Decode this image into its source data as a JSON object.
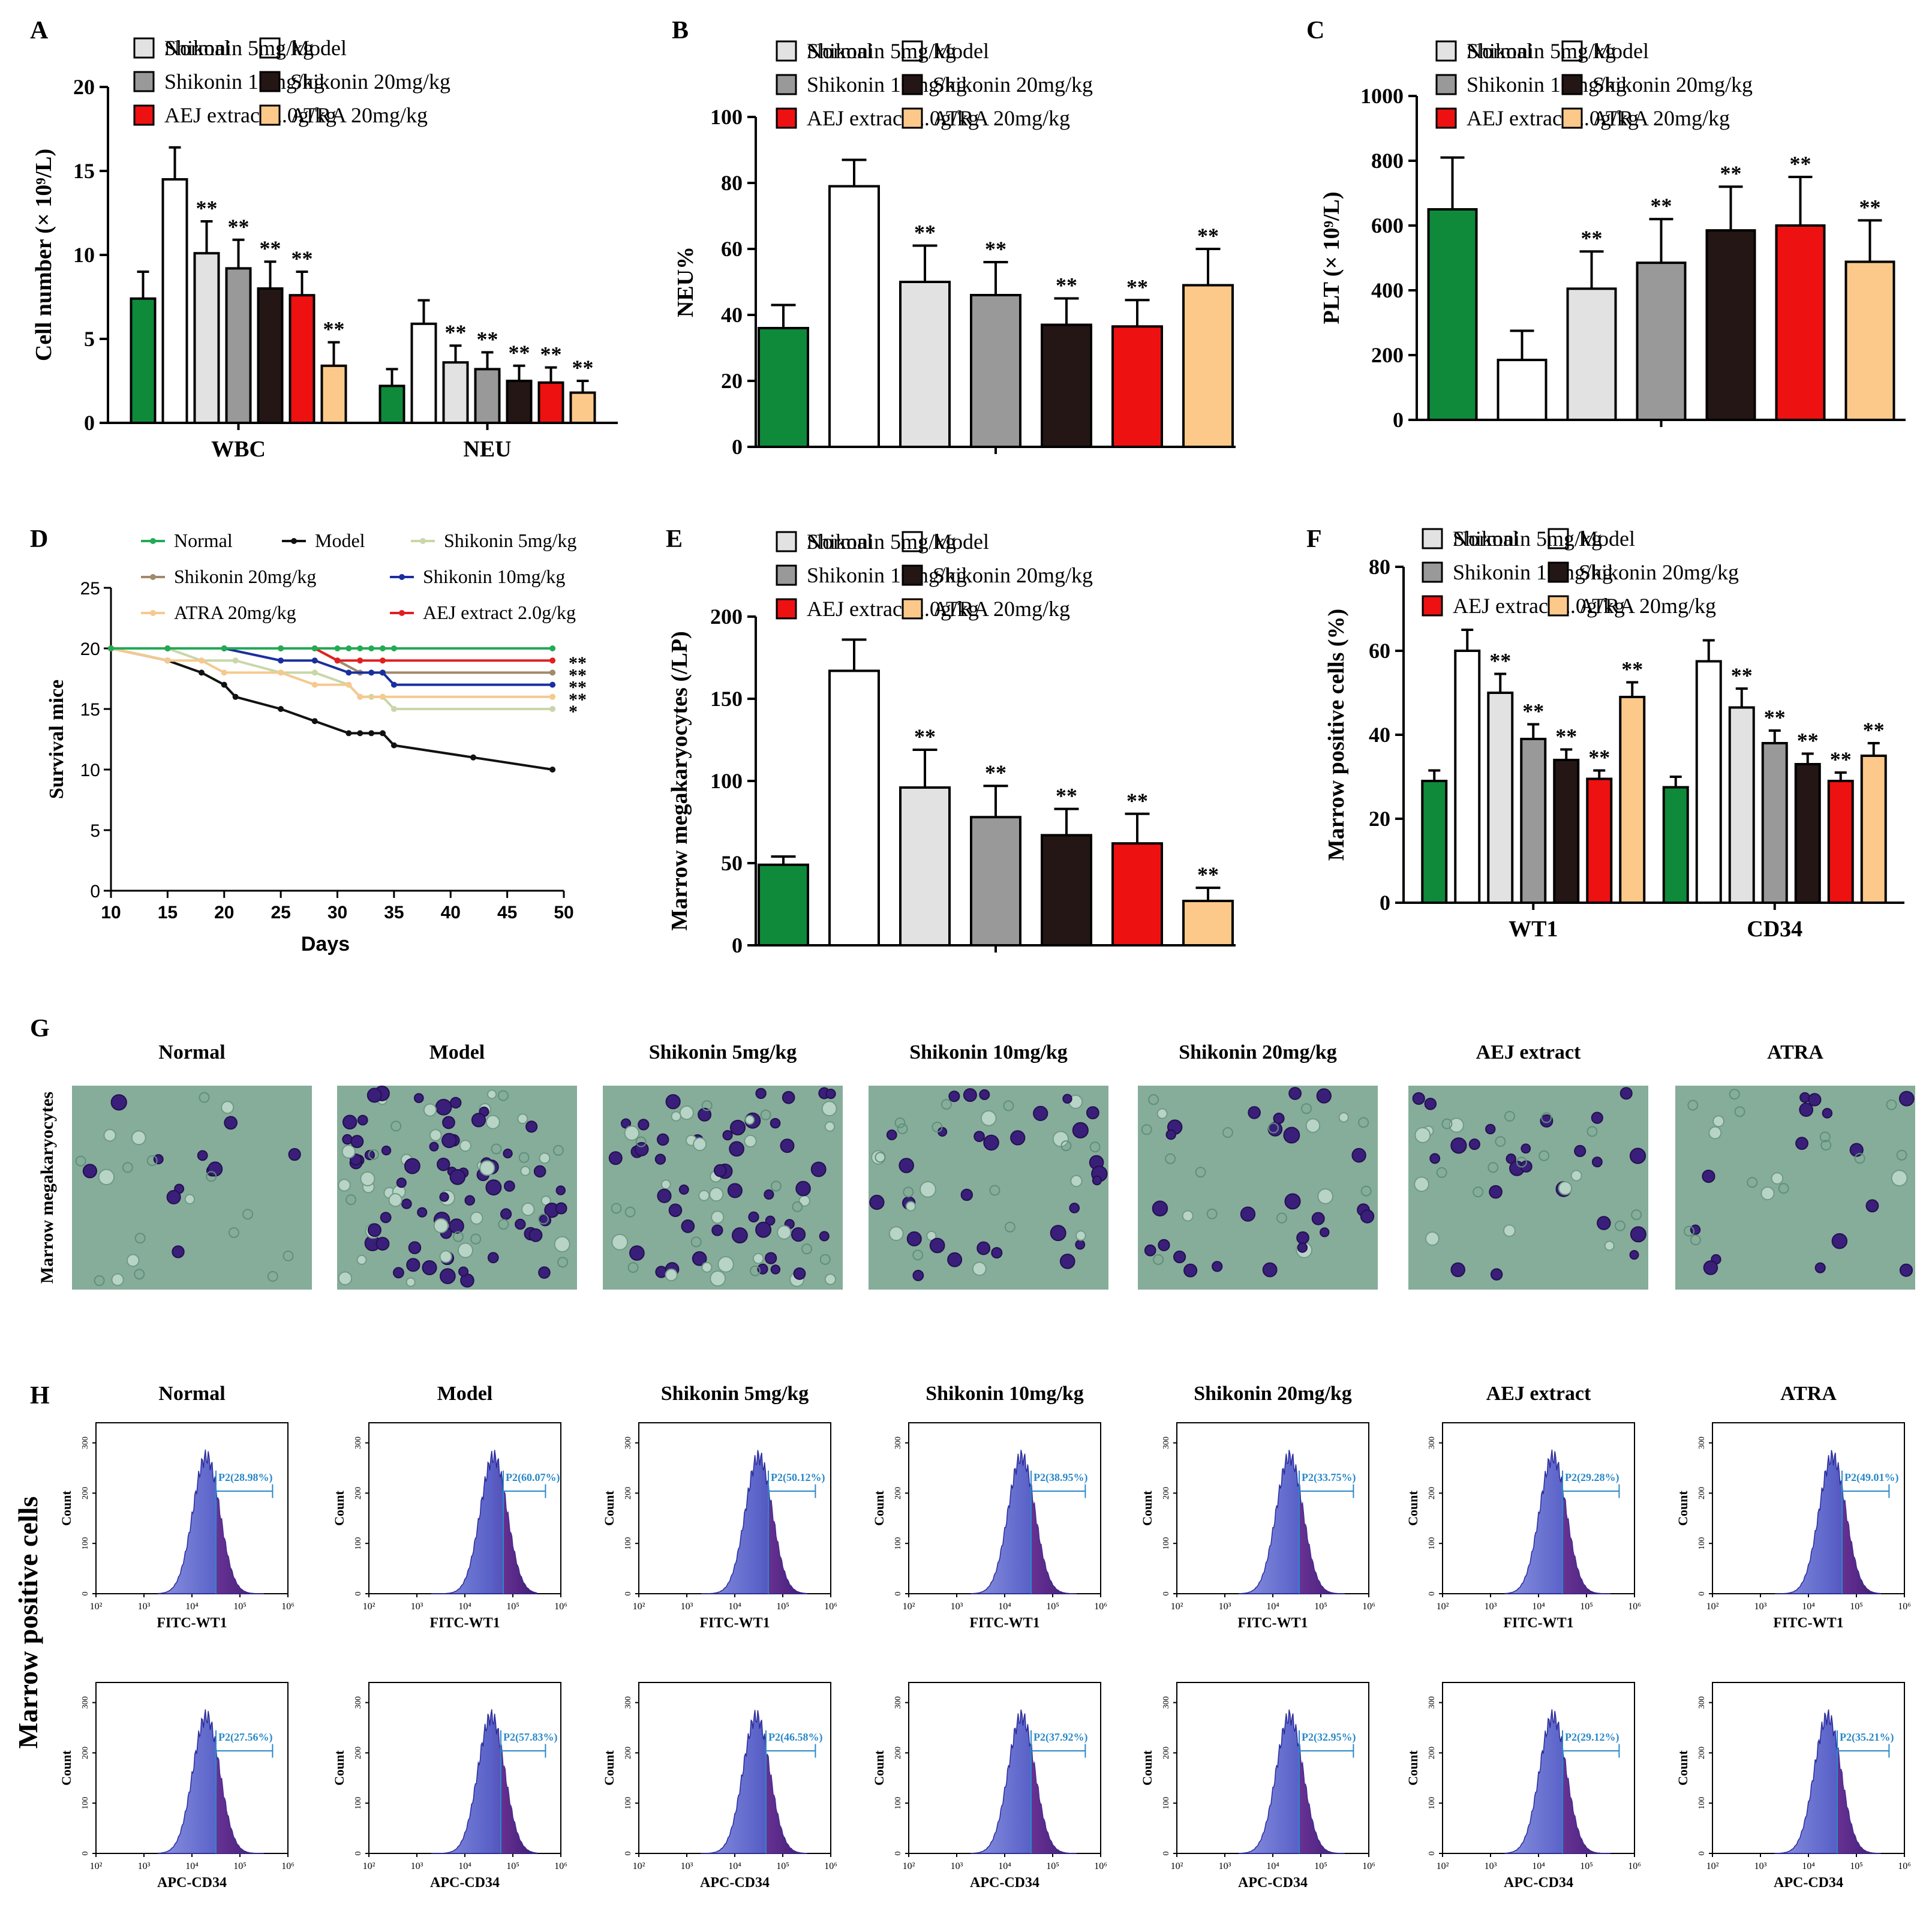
{
  "groups": [
    {
      "name": "Normal",
      "color": "#0e8a3a"
    },
    {
      "name": "Model",
      "color": "#ffffff"
    },
    {
      "name": "Shikonin 5mg/kg",
      "color": "#e2e2e2"
    },
    {
      "name": "Shikonin 10mg/kg",
      "color": "#999999"
    },
    {
      "name": "Shikonin 20mg/kg",
      "color": "#231614"
    },
    {
      "name": "AEJ extract 2.0g/kg",
      "color": "#ee1111"
    },
    {
      "name": "ATRA 20mg/kg",
      "color": "#fcc98a"
    }
  ],
  "chart_data": [
    {
      "panel": "A",
      "type": "bar",
      "ylabel": "Cell number (× 10⁹/L)",
      "ylim": [
        0,
        20
      ],
      "ytick_step": 5,
      "categories": [
        "WBC",
        "NEU"
      ],
      "series": [
        {
          "name": "Normal",
          "values": [
            7.4,
            2.2
          ],
          "errors": [
            1.6,
            1.0
          ],
          "sig": [
            "",
            ""
          ]
        },
        {
          "name": "Model",
          "values": [
            14.5,
            5.9
          ],
          "errors": [
            1.9,
            1.4
          ],
          "sig": [
            "",
            ""
          ]
        },
        {
          "name": "Shikonin 5mg/kg",
          "values": [
            10.1,
            3.6
          ],
          "errors": [
            1.9,
            1.0
          ],
          "sig": [
            "**",
            "**"
          ]
        },
        {
          "name": "Shikonin 10mg/kg",
          "values": [
            9.2,
            3.2
          ],
          "errors": [
            1.7,
            1.0
          ],
          "sig": [
            "**",
            "**"
          ]
        },
        {
          "name": "Shikonin 20mg/kg",
          "values": [
            8.0,
            2.5
          ],
          "errors": [
            1.6,
            0.9
          ],
          "sig": [
            "**",
            "**"
          ]
        },
        {
          "name": "AEJ extract 2.0g/kg",
          "values": [
            7.6,
            2.4
          ],
          "errors": [
            1.4,
            0.9
          ],
          "sig": [
            "**",
            "**"
          ]
        },
        {
          "name": "ATRA 20mg/kg",
          "values": [
            3.4,
            1.8
          ],
          "errors": [
            1.4,
            0.7
          ],
          "sig": [
            "**",
            "**"
          ]
        }
      ]
    },
    {
      "panel": "B",
      "type": "bar",
      "ylabel": "NEU%",
      "ylim": [
        0,
        100
      ],
      "ytick_step": 20,
      "categories": [
        ""
      ],
      "series": [
        {
          "name": "Normal",
          "values": [
            36
          ],
          "errors": [
            7
          ],
          "sig": [
            ""
          ]
        },
        {
          "name": "Model",
          "values": [
            79
          ],
          "errors": [
            8
          ],
          "sig": [
            ""
          ]
        },
        {
          "name": "Shikonin 5mg/kg",
          "values": [
            50
          ],
          "errors": [
            11
          ],
          "sig": [
            "**"
          ]
        },
        {
          "name": "Shikonin 10mg/kg",
          "values": [
            46
          ],
          "errors": [
            10
          ],
          "sig": [
            "**"
          ]
        },
        {
          "name": "Shikonin 20mg/kg",
          "values": [
            37
          ],
          "errors": [
            8
          ],
          "sig": [
            "**"
          ]
        },
        {
          "name": "AEJ extract 2.0g/kg",
          "values": [
            36.5
          ],
          "errors": [
            8
          ],
          "sig": [
            "**"
          ]
        },
        {
          "name": "ATRA 20mg/kg",
          "values": [
            49
          ],
          "errors": [
            11
          ],
          "sig": [
            "**"
          ]
        }
      ]
    },
    {
      "panel": "C",
      "type": "bar",
      "ylabel": "PLT (× 10⁹/L)",
      "ylim": [
        0,
        1000
      ],
      "ytick_step": 200,
      "categories": [
        ""
      ],
      "series": [
        {
          "name": "Normal",
          "values": [
            650
          ],
          "errors": [
            160
          ],
          "sig": [
            ""
          ]
        },
        {
          "name": "Model",
          "values": [
            185
          ],
          "errors": [
            90
          ],
          "sig": [
            ""
          ]
        },
        {
          "name": "Shikonin 5mg/kg",
          "values": [
            405
          ],
          "errors": [
            115
          ],
          "sig": [
            "**"
          ]
        },
        {
          "name": "Shikonin 10mg/kg",
          "values": [
            485
          ],
          "errors": [
            135
          ],
          "sig": [
            "**"
          ]
        },
        {
          "name": "Shikonin 20mg/kg",
          "values": [
            585
          ],
          "errors": [
            135
          ],
          "sig": [
            "**"
          ]
        },
        {
          "name": "AEJ extract 2.0g/kg",
          "values": [
            600
          ],
          "errors": [
            150
          ],
          "sig": [
            "**"
          ]
        },
        {
          "name": "ATRA 20mg/kg",
          "values": [
            488
          ],
          "errors": [
            128
          ],
          "sig": [
            "**"
          ]
        }
      ]
    },
    {
      "panel": "D",
      "type": "line",
      "xlabel": "Days",
      "ylabel": "Survival mice",
      "xlim": [
        10,
        50
      ],
      "ylim": [
        0,
        25
      ],
      "xtick_step": 5,
      "ytick_step": 5,
      "series": [
        {
          "name": "Normal",
          "color": "#22aa55",
          "points": [
            [
              10,
              20
            ],
            [
              15,
              20
            ],
            [
              20,
              20
            ],
            [
              25,
              20
            ],
            [
              28,
              20
            ],
            [
              30,
              20
            ],
            [
              31,
              20
            ],
            [
              32,
              20
            ],
            [
              33,
              20
            ],
            [
              34,
              20
            ],
            [
              35,
              20
            ],
            [
              49,
              20
            ]
          ],
          "sig": ""
        },
        {
          "name": "Model",
          "color": "#111111",
          "points": [
            [
              10,
              20
            ],
            [
              15,
              19
            ],
            [
              18,
              18
            ],
            [
              20,
              17
            ],
            [
              21,
              16
            ],
            [
              25,
              15
            ],
            [
              28,
              14
            ],
            [
              31,
              13
            ],
            [
              32,
              13
            ],
            [
              33,
              13
            ],
            [
              34,
              13
            ],
            [
              35,
              12
            ],
            [
              42,
              11
            ],
            [
              49,
              10
            ]
          ],
          "sig": ""
        },
        {
          "name": "Shikonin 5mg/kg",
          "color": "#c9d6a8",
          "points": [
            [
              10,
              20
            ],
            [
              15,
              20
            ],
            [
              18,
              19
            ],
            [
              21,
              19
            ],
            [
              25,
              18
            ],
            [
              28,
              18
            ],
            [
              31,
              17
            ],
            [
              32,
              16
            ],
            [
              33,
              16
            ],
            [
              34,
              16
            ],
            [
              35,
              15
            ],
            [
              49,
              15
            ]
          ],
          "sig": "*"
        },
        {
          "name": "Shikonin 20mg/kg",
          "color": "#a08a6a",
          "points": [
            [
              10,
              20
            ],
            [
              15,
              20
            ],
            [
              20,
              20
            ],
            [
              28,
              20
            ],
            [
              30,
              19
            ],
            [
              32,
              18
            ],
            [
              34,
              18
            ],
            [
              49,
              18
            ]
          ],
          "sig": "**"
        },
        {
          "name": "Shikonin 10mg/kg",
          "color": "#1a2f9e",
          "points": [
            [
              10,
              20
            ],
            [
              15,
              20
            ],
            [
              20,
              20
            ],
            [
              25,
              19
            ],
            [
              28,
              19
            ],
            [
              31,
              18
            ],
            [
              33,
              18
            ],
            [
              34,
              18
            ],
            [
              35,
              17
            ],
            [
              49,
              17
            ]
          ],
          "sig": "**"
        },
        {
          "name": "ATRA 20mg/kg",
          "color": "#f5c98f",
          "points": [
            [
              10,
              20
            ],
            [
              15,
              19
            ],
            [
              18,
              19
            ],
            [
              20,
              18
            ],
            [
              25,
              18
            ],
            [
              28,
              17
            ],
            [
              31,
              17
            ],
            [
              32,
              16
            ],
            [
              34,
              16
            ],
            [
              49,
              16
            ]
          ],
          "sig": "**"
        },
        {
          "name": "AEJ extract 2.0g/kg",
          "color": "#e02020",
          "points": [
            [
              10,
              20
            ],
            [
              15,
              20
            ],
            [
              20,
              20
            ],
            [
              25,
              20
            ],
            [
              28,
              20
            ],
            [
              30,
              19
            ],
            [
              32,
              19
            ],
            [
              34,
              19
            ],
            [
              49,
              19
            ]
          ],
          "sig": "**"
        }
      ]
    },
    {
      "panel": "E",
      "type": "bar",
      "ylabel": "Marrow megakaryocytes (/LP)",
      "ylim": [
        0,
        200
      ],
      "ytick_step": 50,
      "categories": [
        ""
      ],
      "series": [
        {
          "name": "Normal",
          "values": [
            49
          ],
          "errors": [
            5
          ],
          "sig": [
            ""
          ]
        },
        {
          "name": "Model",
          "values": [
            167
          ],
          "errors": [
            19
          ],
          "sig": [
            ""
          ]
        },
        {
          "name": "Shikonin 5mg/kg",
          "values": [
            96
          ],
          "errors": [
            23
          ],
          "sig": [
            "**"
          ]
        },
        {
          "name": "Shikonin 10mg/kg",
          "values": [
            78
          ],
          "errors": [
            19
          ],
          "sig": [
            "**"
          ]
        },
        {
          "name": "Shikonin 20mg/kg",
          "values": [
            67
          ],
          "errors": [
            16
          ],
          "sig": [
            "**"
          ]
        },
        {
          "name": "AEJ extract 2.0g/kg",
          "values": [
            62
          ],
          "errors": [
            18
          ],
          "sig": [
            "**"
          ]
        },
        {
          "name": "ATRA 20mg/kg",
          "values": [
            27
          ],
          "errors": [
            8
          ],
          "sig": [
            "**"
          ]
        }
      ]
    },
    {
      "panel": "F",
      "type": "bar",
      "ylabel": "Marrow positive cells (%)",
      "ylim": [
        0,
        80
      ],
      "ytick_step": 20,
      "categories": [
        "WT1",
        "CD34"
      ],
      "series": [
        {
          "name": "Normal",
          "values": [
            29,
            27.5
          ],
          "errors": [
            2.5,
            2.5
          ],
          "sig": [
            "",
            ""
          ]
        },
        {
          "name": "Model",
          "values": [
            60,
            57.5
          ],
          "errors": [
            5,
            5
          ],
          "sig": [
            "",
            ""
          ]
        },
        {
          "name": "Shikonin 5mg/kg",
          "values": [
            50,
            46.5
          ],
          "errors": [
            4.5,
            4.5
          ],
          "sig": [
            "**",
            "**"
          ]
        },
        {
          "name": "Shikonin 10mg/kg",
          "values": [
            39,
            38
          ],
          "errors": [
            3.5,
            3
          ],
          "sig": [
            "**",
            "**"
          ]
        },
        {
          "name": "Shikonin 20mg/kg",
          "values": [
            34,
            33
          ],
          "errors": [
            2.5,
            2.5
          ],
          "sig": [
            "**",
            "**"
          ]
        },
        {
          "name": "AEJ extract 2.0g/kg",
          "values": [
            29.5,
            29
          ],
          "errors": [
            2,
            2
          ],
          "sig": [
            "**",
            "**"
          ]
        },
        {
          "name": "ATRA 20mg/kg",
          "values": [
            49,
            35
          ],
          "errors": [
            3.5,
            3
          ],
          "sig": [
            "**",
            "**"
          ]
        }
      ]
    }
  ],
  "panel_letters": [
    "A",
    "B",
    "C",
    "D",
    "E",
    "F",
    "G",
    "H"
  ],
  "micrographs": {
    "row_label": "Marrow megakaryocytes",
    "titles": [
      "Normal",
      "Model",
      "Shikonin 5mg/kg",
      "Shikonin 10mg/kg",
      "Shikonin 20mg/kg",
      "AEJ extract",
      "ATRA"
    ],
    "cell_density": [
      18,
      95,
      70,
      40,
      30,
      32,
      20
    ],
    "background": "#86ad9a",
    "cell_color": "#3a1f7a"
  },
  "flow": {
    "row_label": "Marrow positive cells",
    "titles": [
      "Normal",
      "Model",
      "Shikonin 5mg/kg",
      "Shikonin 10mg/kg",
      "Shikonin 20mg/kg",
      "AEJ extract",
      "ATRA"
    ],
    "ylabel": "Count",
    "yticks": [
      "0",
      "100",
      "200",
      "300"
    ],
    "xticks": [
      "10²",
      "10³",
      "10⁴",
      "10⁵",
      "10⁶"
    ],
    "wt1_xlabel": "FITC-WT1",
    "cd34_xlabel": "APC-CD34",
    "wt1_gates": [
      "P2(28.98%)",
      "P2(60.07%)",
      "P2(50.12%)",
      "P2(38.95%)",
      "P2(33.75%)",
      "P2(29.28%)",
      "P2(49.01%)"
    ],
    "cd34_gates": [
      "P2(27.56%)",
      "P2(57.83%)",
      "P2(46.58%)",
      "P2(37.92%)",
      "P2(32.95%)",
      "P2(29.12%)",
      "P2(35.21%)"
    ],
    "wt1_peak_log": [
      4.3,
      4.6,
      4.5,
      4.35,
      4.35,
      4.3,
      4.5
    ],
    "cd34_peak_log": [
      4.3,
      4.55,
      4.45,
      4.35,
      4.35,
      4.3,
      4.4
    ],
    "fill_color": "#5a62c8",
    "gate_color": "#2a88c8"
  }
}
